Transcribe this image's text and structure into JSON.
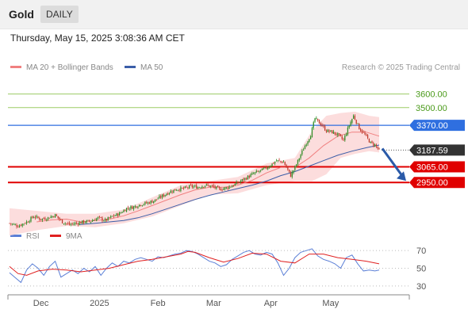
{
  "header": {
    "symbol": "Gold",
    "period": "DAILY",
    "timestamp": "Thursday, May 15, 2025 3:08:36 AM CET",
    "credit": "Research © 2025 Trading Central"
  },
  "legend": {
    "ma20_label": "MA 20 + Bollinger Bands",
    "ma50_label": "MA 50",
    "rsi_label": "RSI",
    "rsi_ma_label": "9MA"
  },
  "colors": {
    "up": "#2e8b24",
    "down": "#c0392b",
    "band_fill": "#fcd9d9",
    "ma20": "#f08080",
    "ma50": "#3b5ea8",
    "resistance_green": "#9ccc65",
    "pivot_blue": "#2f6fe0",
    "support_red": "#e00000",
    "last_price": "#333333",
    "arrow": "#2a5aa8",
    "rsi": "#5b7fd6",
    "rsi_ma": "#e02020"
  },
  "chart_data": [
    {
      "type": "candlestick",
      "x_labels": [
        "Dec",
        "2025",
        "Feb",
        "Mar",
        "Apr",
        "May"
      ],
      "ylim": [
        2590,
        3720
      ],
      "last_price": "3187.59",
      "last_price_value": 3187.59,
      "levels": [
        {
          "label": "3600.00",
          "value": 3600,
          "kind": "resistance",
          "color": "#9ccc65"
        },
        {
          "label": "3500.00",
          "value": 3500,
          "kind": "resistance",
          "color": "#9ccc65"
        },
        {
          "label": "3370.00",
          "value": 3370,
          "kind": "pivot",
          "color": "#2f6fe0"
        },
        {
          "label": "3065.00",
          "value": 3065,
          "kind": "support",
          "color": "#e00000"
        },
        {
          "label": "2950.00",
          "value": 2950,
          "kind": "support",
          "color": "#e00000"
        }
      ],
      "close_path": [
        [
          0,
          2650
        ],
        [
          6,
          2630
        ],
        [
          12,
          2660
        ],
        [
          17,
          2700
        ],
        [
          22,
          2680
        ],
        [
          27,
          2690
        ],
        [
          32,
          2710
        ],
        [
          37,
          2660
        ],
        [
          42,
          2640
        ],
        [
          47,
          2650
        ],
        [
          52,
          2660
        ],
        [
          57,
          2665
        ],
        [
          62,
          2690
        ],
        [
          67,
          2670
        ],
        [
          72,
          2700
        ],
        [
          77,
          2720
        ],
        [
          82,
          2760
        ],
        [
          87,
          2770
        ],
        [
          92,
          2790
        ],
        [
          97,
          2800
        ],
        [
          102,
          2820
        ],
        [
          107,
          2850
        ],
        [
          112,
          2880
        ],
        [
          117,
          2900
        ],
        [
          122,
          2905
        ],
        [
          127,
          2920
        ],
        [
          132,
          2915
        ],
        [
          137,
          2930
        ],
        [
          142,
          2920
        ],
        [
          147,
          2900
        ],
        [
          152,
          2910
        ],
        [
          157,
          2930
        ],
        [
          162,
          2960
        ],
        [
          167,
          2990
        ],
        [
          172,
          3020
        ],
        [
          177,
          3040
        ],
        [
          182,
          3070
        ],
        [
          187,
          3110
        ],
        [
          192,
          3100
        ],
        [
          197,
          3000
        ],
        [
          200,
          3060
        ],
        [
          203,
          3130
        ],
        [
          207,
          3220
        ],
        [
          211,
          3300
        ],
        [
          214,
          3420
        ],
        [
          218,
          3380
        ],
        [
          222,
          3330
        ],
        [
          226,
          3320
        ],
        [
          230,
          3300
        ],
        [
          234,
          3260
        ],
        [
          238,
          3370
        ],
        [
          241,
          3440
        ],
        [
          245,
          3350
        ],
        [
          249,
          3300
        ],
        [
          253,
          3240
        ],
        [
          256,
          3225
        ],
        [
          259,
          3187.59
        ]
      ],
      "candle_days": 260,
      "ma20": [
        [
          19,
          2660
        ],
        [
          30,
          2675
        ],
        [
          40,
          2680
        ],
        [
          50,
          2660
        ],
        [
          60,
          2670
        ],
        [
          70,
          2680
        ],
        [
          80,
          2705
        ],
        [
          90,
          2740
        ],
        [
          100,
          2780
        ],
        [
          110,
          2820
        ],
        [
          120,
          2860
        ],
        [
          130,
          2895
        ],
        [
          140,
          2915
        ],
        [
          150,
          2915
        ],
        [
          160,
          2930
        ],
        [
          170,
          2965
        ],
        [
          180,
          3020
        ],
        [
          190,
          3060
        ],
        [
          200,
          3060
        ],
        [
          210,
          3130
        ],
        [
          220,
          3220
        ],
        [
          230,
          3290
        ],
        [
          240,
          3320
        ],
        [
          250,
          3320
        ],
        [
          259,
          3290
        ]
      ],
      "ma50": [
        [
          49,
          2640
        ],
        [
          60,
          2650
        ],
        [
          70,
          2660
        ],
        [
          80,
          2670
        ],
        [
          90,
          2690
        ],
        [
          100,
          2720
        ],
        [
          110,
          2755
        ],
        [
          120,
          2790
        ],
        [
          130,
          2825
        ],
        [
          140,
          2855
        ],
        [
          150,
          2880
        ],
        [
          160,
          2905
        ],
        [
          170,
          2930
        ],
        [
          180,
          2960
        ],
        [
          190,
          3000
        ],
        [
          200,
          3030
        ],
        [
          210,
          3070
        ],
        [
          220,
          3110
        ],
        [
          230,
          3150
        ],
        [
          240,
          3180
        ],
        [
          250,
          3205
        ],
        [
          259,
          3225
        ]
      ],
      "bb_upper": [
        [
          0,
          2760
        ],
        [
          20,
          2740
        ],
        [
          40,
          2720
        ],
        [
          60,
          2720
        ],
        [
          80,
          2750
        ],
        [
          100,
          2840
        ],
        [
          120,
          2930
        ],
        [
          140,
          2960
        ],
        [
          160,
          2990
        ],
        [
          180,
          3090
        ],
        [
          200,
          3130
        ],
        [
          212,
          3330
        ],
        [
          222,
          3440
        ],
        [
          232,
          3460
        ],
        [
          242,
          3470
        ],
        [
          252,
          3440
        ],
        [
          259,
          3430
        ]
      ],
      "bb_lower": [
        [
          0,
          2560
        ],
        [
          20,
          2600
        ],
        [
          40,
          2630
        ],
        [
          60,
          2620
        ],
        [
          80,
          2650
        ],
        [
          100,
          2700
        ],
        [
          120,
          2780
        ],
        [
          140,
          2860
        ],
        [
          160,
          2870
        ],
        [
          180,
          2930
        ],
        [
          200,
          2960
        ],
        [
          212,
          2960
        ],
        [
          222,
          3010
        ],
        [
          232,
          3130
        ],
        [
          242,
          3160
        ],
        [
          252,
          3180
        ],
        [
          259,
          3170
        ]
      ]
    },
    {
      "type": "line",
      "name": "RSI",
      "ylim": [
        20,
        80
      ],
      "y_ticks": [
        "70",
        "50",
        "30"
      ],
      "y_tick_values": [
        70,
        50,
        30
      ],
      "rsi": [
        [
          0,
          45
        ],
        [
          5,
          38
        ],
        [
          8,
          34
        ],
        [
          12,
          48
        ],
        [
          16,
          55
        ],
        [
          20,
          50
        ],
        [
          24,
          42
        ],
        [
          28,
          52
        ],
        [
          32,
          58
        ],
        [
          36,
          40
        ],
        [
          40,
          44
        ],
        [
          44,
          48
        ],
        [
          48,
          44
        ],
        [
          52,
          50
        ],
        [
          56,
          46
        ],
        [
          60,
          52
        ],
        [
          64,
          42
        ],
        [
          68,
          50
        ],
        [
          72,
          56
        ],
        [
          76,
          52
        ],
        [
          80,
          58
        ],
        [
          84,
          56
        ],
        [
          88,
          60
        ],
        [
          92,
          62
        ],
        [
          96,
          60
        ],
        [
          100,
          58
        ],
        [
          104,
          63
        ],
        [
          108,
          62
        ],
        [
          112,
          64
        ],
        [
          116,
          66
        ],
        [
          120,
          67
        ],
        [
          124,
          70
        ],
        [
          128,
          69
        ],
        [
          132,
          66
        ],
        [
          136,
          62
        ],
        [
          140,
          58
        ],
        [
          144,
          56
        ],
        [
          148,
          52
        ],
        [
          152,
          54
        ],
        [
          156,
          60
        ],
        [
          160,
          64
        ],
        [
          164,
          68
        ],
        [
          168,
          70
        ],
        [
          172,
          66
        ],
        [
          176,
          65
        ],
        [
          180,
          68
        ],
        [
          184,
          66
        ],
        [
          188,
          56
        ],
        [
          192,
          42
        ],
        [
          196,
          50
        ],
        [
          200,
          62
        ],
        [
          204,
          68
        ],
        [
          208,
          70
        ],
        [
          212,
          72
        ],
        [
          216,
          64
        ],
        [
          220,
          60
        ],
        [
          224,
          58
        ],
        [
          228,
          55
        ],
        [
          232,
          50
        ],
        [
          236,
          62
        ],
        [
          240,
          65
        ],
        [
          244,
          55
        ],
        [
          248,
          47
        ],
        [
          252,
          48
        ],
        [
          256,
          47
        ],
        [
          259,
          48
        ]
      ],
      "rsi_ma": [
        [
          0,
          52
        ],
        [
          6,
          44
        ],
        [
          12,
          42
        ],
        [
          20,
          47
        ],
        [
          30,
          49
        ],
        [
          40,
          48
        ],
        [
          50,
          46
        ],
        [
          60,
          48
        ],
        [
          70,
          50
        ],
        [
          80,
          54
        ],
        [
          90,
          58
        ],
        [
          100,
          60
        ],
        [
          110,
          63
        ],
        [
          120,
          66
        ],
        [
          125,
          69
        ],
        [
          130,
          68
        ],
        [
          140,
          62
        ],
        [
          150,
          57
        ],
        [
          160,
          61
        ],
        [
          170,
          67
        ],
        [
          180,
          66
        ],
        [
          190,
          58
        ],
        [
          200,
          56
        ],
        [
          210,
          66
        ],
        [
          220,
          66
        ],
        [
          230,
          62
        ],
        [
          240,
          60
        ],
        [
          250,
          58
        ],
        [
          259,
          55
        ]
      ]
    }
  ]
}
